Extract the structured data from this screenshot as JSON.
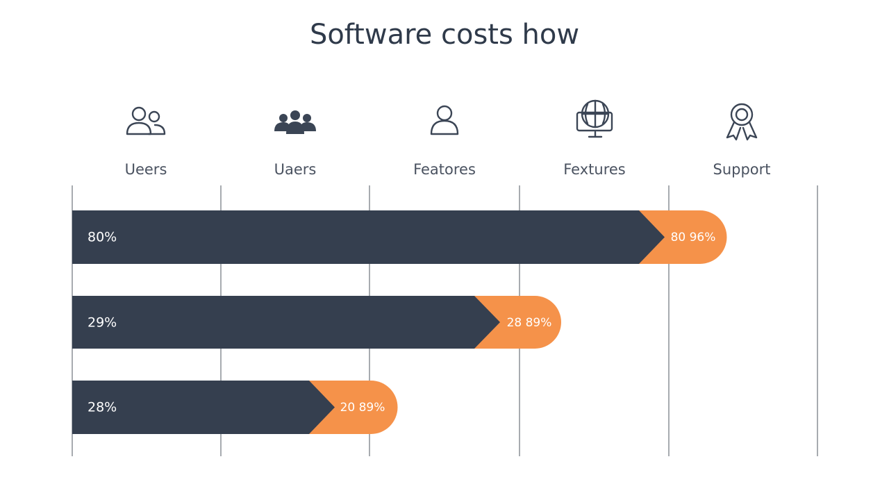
{
  "title": "Software costs how",
  "columns": [
    {
      "label": "Ueers"
    },
    {
      "label": "Uaers"
    },
    {
      "label": "Featores"
    },
    {
      "label": "Fextures"
    },
    {
      "label": "Support"
    }
  ],
  "rows": [
    {
      "left": "80%",
      "right": "80 96%"
    },
    {
      "left": "29%",
      "right": "28 89%"
    },
    {
      "left": "28%",
      "right": "20 89%"
    }
  ]
}
